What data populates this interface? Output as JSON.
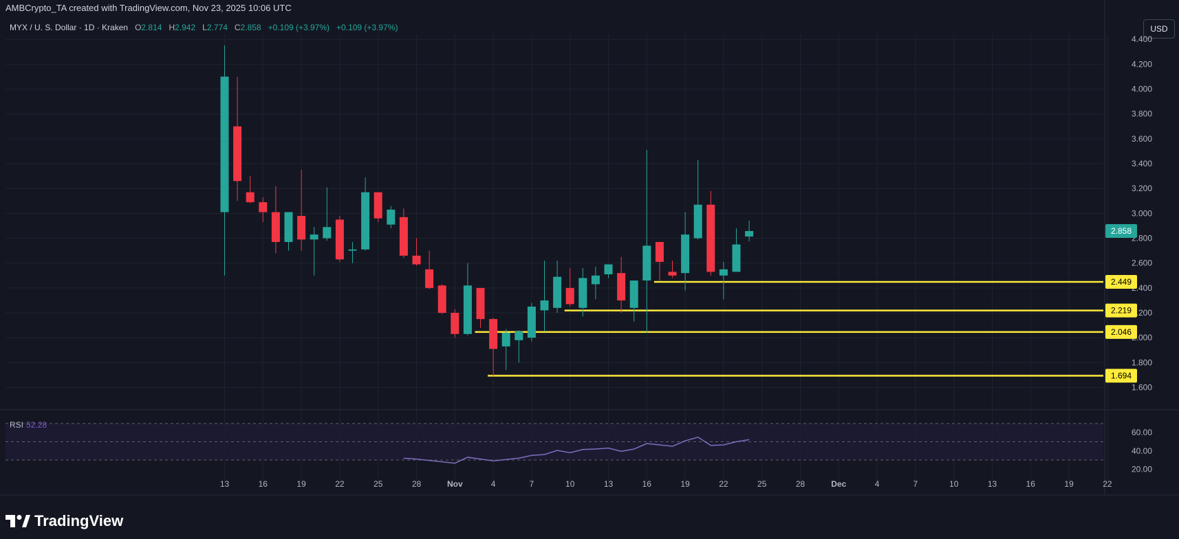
{
  "header": {
    "attribution": "AMBCrypto_TA created with TradingView.com, Nov 23, 2025 10:06 UTC"
  },
  "legend": {
    "symbol": "MYX / U. S. Dollar · 1D · Kraken",
    "open_label": "O",
    "open_value": "2.814",
    "high_label": "H",
    "high_value": "2.942",
    "low_label": "L",
    "low_value": "2.774",
    "close_label": "C",
    "close_value": "2.858",
    "change_1": "+0.109 (+3.97%)",
    "change_2": "+0.109 (+3.97%)"
  },
  "currency_button": "USD",
  "rsi": {
    "label": "RSI",
    "value": "52.28"
  },
  "brand": "TradingView",
  "colors": {
    "up": "#26a69a",
    "down": "#f23645",
    "level": "#ffeb3b",
    "rsi_line": "#7e6fc0",
    "price_badge": "#26a69a"
  },
  "chart_data": {
    "type": "candlestick",
    "price_axis": {
      "ticks": [
        "1.600",
        "1.800",
        "2.000",
        "2.200",
        "2.400",
        "2.600",
        "2.800",
        "3.000",
        "3.200",
        "3.400",
        "3.600",
        "3.800",
        "4.000",
        "4.200",
        "4.400"
      ],
      "range": [
        1.52,
        4.44
      ]
    },
    "time_axis": {
      "ticks": [
        "13",
        "16",
        "19",
        "22",
        "25",
        "28",
        "Nov",
        "4",
        "7",
        "10",
        "13",
        "16",
        "19",
        "22",
        "25",
        "28",
        "Dec",
        "4",
        "7",
        "10",
        "13",
        "16",
        "19",
        "22"
      ],
      "first_day_index": 0,
      "first_tick_day": 13
    },
    "candles": [
      {
        "d": "Oct 13",
        "o": 3.01,
        "h": 4.35,
        "l": 2.5,
        "c": 4.1
      },
      {
        "d": "Oct 14",
        "o": 3.7,
        "h": 4.1,
        "l": 3.1,
        "c": 3.26
      },
      {
        "d": "Oct 15",
        "o": 3.17,
        "h": 3.3,
        "l": 3.08,
        "c": 3.09
      },
      {
        "d": "Oct 16",
        "o": 3.09,
        "h": 3.13,
        "l": 2.93,
        "c": 3.01
      },
      {
        "d": "Oct 17",
        "o": 3.01,
        "h": 3.22,
        "l": 2.68,
        "c": 2.77
      },
      {
        "d": "Oct 18",
        "o": 2.77,
        "h": 3.01,
        "l": 2.7,
        "c": 3.01
      },
      {
        "d": "Oct 19",
        "o": 2.98,
        "h": 3.35,
        "l": 2.7,
        "c": 2.79
      },
      {
        "d": "Oct 20",
        "o": 2.79,
        "h": 2.89,
        "l": 2.5,
        "c": 2.83
      },
      {
        "d": "Oct 21",
        "o": 2.8,
        "h": 3.21,
        "l": 2.78,
        "c": 2.89
      },
      {
        "d": "Oct 22",
        "o": 2.95,
        "h": 2.98,
        "l": 2.61,
        "c": 2.63
      },
      {
        "d": "Oct 23",
        "o": 2.7,
        "h": 2.77,
        "l": 2.6,
        "c": 2.71
      },
      {
        "d": "Oct 24",
        "o": 2.71,
        "h": 3.29,
        "l": 2.7,
        "c": 3.17
      },
      {
        "d": "Oct 25",
        "o": 3.17,
        "h": 3.17,
        "l": 2.93,
        "c": 2.96
      },
      {
        "d": "Oct 26",
        "o": 2.91,
        "h": 3.06,
        "l": 2.88,
        "c": 3.03
      },
      {
        "d": "Oct 27",
        "o": 2.97,
        "h": 3.04,
        "l": 2.64,
        "c": 2.66
      },
      {
        "d": "Oct 28",
        "o": 2.66,
        "h": 2.8,
        "l": 2.58,
        "c": 2.59
      },
      {
        "d": "Oct 29",
        "o": 2.55,
        "h": 2.7,
        "l": 2.39,
        "c": 2.4
      },
      {
        "d": "Oct 30",
        "o": 2.42,
        "h": 2.43,
        "l": 2.19,
        "c": 2.2
      },
      {
        "d": "Oct 31",
        "o": 2.2,
        "h": 2.23,
        "l": 2.0,
        "c": 2.03
      },
      {
        "d": "Nov 1",
        "o": 2.03,
        "h": 2.6,
        "l": 2.02,
        "c": 2.42
      },
      {
        "d": "Nov 2",
        "o": 2.4,
        "h": 2.4,
        "l": 2.08,
        "c": 2.15
      },
      {
        "d": "Nov 3",
        "o": 2.15,
        "h": 2.16,
        "l": 1.69,
        "c": 1.91
      },
      {
        "d": "Nov 4",
        "o": 1.93,
        "h": 2.07,
        "l": 1.74,
        "c": 2.04
      },
      {
        "d": "Nov 5",
        "o": 1.98,
        "h": 2.06,
        "l": 1.8,
        "c": 2.05
      },
      {
        "d": "Nov 6",
        "o": 2.0,
        "h": 2.28,
        "l": 1.97,
        "c": 2.25
      },
      {
        "d": "Nov 7",
        "o": 2.22,
        "h": 2.62,
        "l": 2.05,
        "c": 2.3
      },
      {
        "d": "Nov 8",
        "o": 2.24,
        "h": 2.62,
        "l": 2.2,
        "c": 2.49
      },
      {
        "d": "Nov 9",
        "o": 2.4,
        "h": 2.56,
        "l": 2.25,
        "c": 2.27
      },
      {
        "d": "Nov 10",
        "o": 2.24,
        "h": 2.56,
        "l": 2.17,
        "c": 2.48
      },
      {
        "d": "Nov 11",
        "o": 2.43,
        "h": 2.57,
        "l": 2.31,
        "c": 2.5
      },
      {
        "d": "Nov 12",
        "o": 2.51,
        "h": 2.59,
        "l": 2.48,
        "c": 2.59
      },
      {
        "d": "Nov 13",
        "o": 2.52,
        "h": 2.65,
        "l": 2.2,
        "c": 2.3
      },
      {
        "d": "Nov 14",
        "o": 2.24,
        "h": 2.46,
        "l": 2.13,
        "c": 2.46
      },
      {
        "d": "Nov 15",
        "o": 2.46,
        "h": 3.51,
        "l": 2.04,
        "c": 2.74
      },
      {
        "d": "Nov 16",
        "o": 2.77,
        "h": 2.77,
        "l": 2.46,
        "c": 2.61
      },
      {
        "d": "Nov 17",
        "o": 2.53,
        "h": 2.62,
        "l": 2.48,
        "c": 2.5
      },
      {
        "d": "Nov 18",
        "o": 2.52,
        "h": 3.01,
        "l": 2.38,
        "c": 2.83
      },
      {
        "d": "Nov 19",
        "o": 2.8,
        "h": 3.43,
        "l": 2.79,
        "c": 3.07
      },
      {
        "d": "Nov 20",
        "o": 3.07,
        "h": 3.18,
        "l": 2.5,
        "c": 2.53
      },
      {
        "d": "Nov 21",
        "o": 2.5,
        "h": 2.61,
        "l": 2.31,
        "c": 2.55
      },
      {
        "d": "Nov 22",
        "o": 2.53,
        "h": 2.88,
        "l": 2.53,
        "c": 2.75
      },
      {
        "d": "Nov 23",
        "o": 2.814,
        "h": 2.942,
        "l": 2.774,
        "c": 2.858
      }
    ],
    "horizontal_levels": [
      {
        "value": 2.449,
        "label": "2.449",
        "start": "Nov 16"
      },
      {
        "value": 2.219,
        "label": "2.219",
        "start": "Nov 9"
      },
      {
        "value": 2.046,
        "label": "2.046",
        "start": "Nov 2"
      },
      {
        "value": 1.694,
        "label": "1.694",
        "start": "Nov 3"
      }
    ],
    "last_price": {
      "value": 2.858,
      "label": "2.858"
    },
    "rsi_axis": {
      "ticks": [
        "20.00",
        "40.00",
        "60.00"
      ],
      "range": [
        18,
        76
      ],
      "bands": [
        30,
        70
      ],
      "mid": 50
    },
    "rsi_series": [
      {
        "d": "Oct 27",
        "v": 32
      },
      {
        "d": "Oct 28",
        "v": 31
      },
      {
        "d": "Oct 29",
        "v": 29.5
      },
      {
        "d": "Oct 30",
        "v": 28
      },
      {
        "d": "Oct 31",
        "v": 26.5
      },
      {
        "d": "Nov 1",
        "v": 33
      },
      {
        "d": "Nov 2",
        "v": 31
      },
      {
        "d": "Nov 3",
        "v": 29
      },
      {
        "d": "Nov 4",
        "v": 30.5
      },
      {
        "d": "Nov 5",
        "v": 32
      },
      {
        "d": "Nov 6",
        "v": 35
      },
      {
        "d": "Nov 7",
        "v": 36
      },
      {
        "d": "Nov 8",
        "v": 40.5
      },
      {
        "d": "Nov 9",
        "v": 38
      },
      {
        "d": "Nov 10",
        "v": 41.5
      },
      {
        "d": "Nov 11",
        "v": 42
      },
      {
        "d": "Nov 12",
        "v": 43
      },
      {
        "d": "Nov 13",
        "v": 39.5
      },
      {
        "d": "Nov 14",
        "v": 42
      },
      {
        "d": "Nov 15",
        "v": 48
      },
      {
        "d": "Nov 16",
        "v": 46.5
      },
      {
        "d": "Nov 17",
        "v": 45
      },
      {
        "d": "Nov 18",
        "v": 51
      },
      {
        "d": "Nov 19",
        "v": 55
      },
      {
        "d": "Nov 20",
        "v": 46
      },
      {
        "d": "Nov 21",
        "v": 46.5
      },
      {
        "d": "Nov 22",
        "v": 50
      },
      {
        "d": "Nov 23",
        "v": 52.28
      }
    ]
  }
}
